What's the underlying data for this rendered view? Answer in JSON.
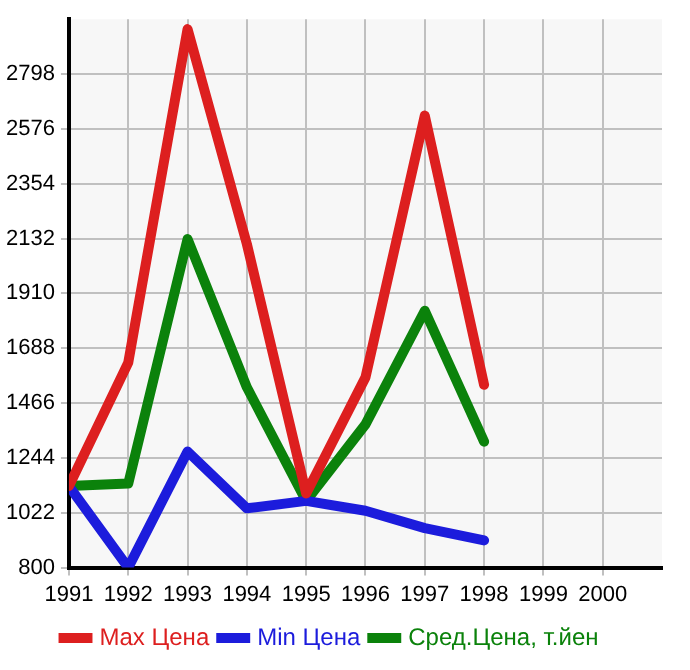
{
  "chart_data": {
    "type": "line",
    "x": [
      1991,
      1992,
      1993,
      1994,
      1995,
      1996,
      1997,
      1998
    ],
    "series": [
      {
        "name": "Max Цена",
        "color": "#dd1f1f",
        "values": [
          1130,
          1630,
          2980,
          2110,
          1100,
          1570,
          2630,
          1540
        ]
      },
      {
        "name": "Min Цена",
        "color": "#1c1cdc",
        "values": [
          1130,
          800,
          1270,
          1040,
          1070,
          1030,
          960,
          910
        ]
      },
      {
        "name": "Сред.Цена, т.йен",
        "color": "#0b820b",
        "values": [
          1130,
          1140,
          2130,
          1530,
          1070,
          1380,
          1840,
          1310
        ]
      }
    ],
    "xlim": [
      1991,
      2001
    ],
    "xticks": [
      1991,
      1992,
      1993,
      1994,
      1995,
      1996,
      1997,
      1998,
      1999,
      2000
    ],
    "ylim": [
      800,
      3020
    ],
    "yticks": [
      800,
      1022,
      1244,
      1466,
      1688,
      1910,
      2132,
      2354,
      2576,
      2798
    ],
    "grid": true,
    "legend": "bottom",
    "marker": "none",
    "line_style": "solid"
  }
}
